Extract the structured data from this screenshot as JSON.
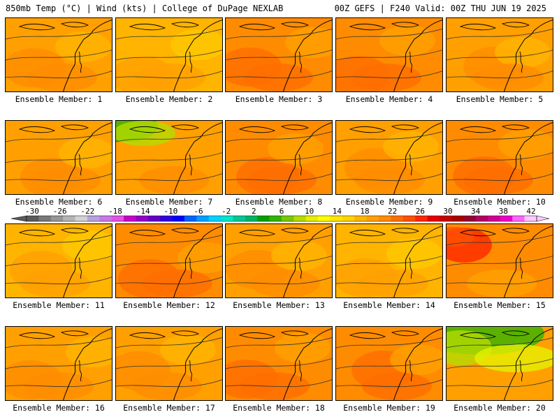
{
  "header": {
    "title_left": "850mb Temp (°C) | Wind (kts) | College of DuPage NEXLAB",
    "title_right": "00Z GEFS | F240 Valid: 00Z THU JUN 19 2025"
  },
  "members": [
    {
      "label": "Ensemble Member: 1",
      "theme": "warm"
    },
    {
      "label": "Ensemble Member: 2",
      "theme": "mild"
    },
    {
      "label": "Ensemble Member: 3",
      "theme": "hot"
    },
    {
      "label": "Ensemble Member: 4",
      "theme": "hot"
    },
    {
      "label": "Ensemble Member: 5",
      "theme": "warm"
    },
    {
      "label": "Ensemble Member: 6",
      "theme": "warm"
    },
    {
      "label": "Ensemble Member: 7",
      "theme": "cool_nw"
    },
    {
      "label": "Ensemble Member: 8",
      "theme": "hot"
    },
    {
      "label": "Ensemble Member: 9",
      "theme": "warm"
    },
    {
      "label": "Ensemble Member: 10",
      "theme": "hot"
    },
    {
      "label": "Ensemble Member: 11",
      "theme": "mild"
    },
    {
      "label": "Ensemble Member: 12",
      "theme": "hot"
    },
    {
      "label": "Ensemble Member: 13",
      "theme": "warm"
    },
    {
      "label": "Ensemble Member: 14",
      "theme": "mild"
    },
    {
      "label": "Ensemble Member: 15",
      "theme": "veryhot"
    },
    {
      "label": "Ensemble Member: 16",
      "theme": "warm"
    },
    {
      "label": "Ensemble Member: 17",
      "theme": "warm"
    },
    {
      "label": "Ensemble Member: 18",
      "theme": "hot"
    },
    {
      "label": "Ensemble Member: 19",
      "theme": "hot"
    },
    {
      "label": "Ensemble Member: 20",
      "theme": "cool_n"
    }
  ],
  "colorbar": {
    "tick_labels": [
      "-30",
      "-26",
      "-22",
      "-18",
      "-14",
      "-10",
      "-6",
      "-2",
      "2",
      "6",
      "10",
      "14",
      "18",
      "22",
      "26",
      "30",
      "34",
      "38",
      "42"
    ],
    "colors": [
      "#5a5a5a",
      "#787878",
      "#969696",
      "#b4b4b4",
      "#d2d2d2",
      "#b9a0dc",
      "#c878e6",
      "#e650e6",
      "#c800c8",
      "#9600c8",
      "#6400c8",
      "#3200dc",
      "#0000ff",
      "#0064ff",
      "#00a0ff",
      "#00d2ff",
      "#00e6c8",
      "#00c896",
      "#00b464",
      "#00a000",
      "#32b400",
      "#78c800",
      "#b4dc00",
      "#e6f000",
      "#ffff00",
      "#ffe600",
      "#ffd200",
      "#ffb400",
      "#ffa000",
      "#ff8c00",
      "#ff6e00",
      "#ff5000",
      "#ff2800",
      "#e60000",
      "#c80000",
      "#aa0000",
      "#960032",
      "#b40064",
      "#d20096",
      "#f000c8",
      "#ff64ff",
      "#ffc8ff"
    ]
  },
  "theme_colors": {
    "mild": {
      "base": "#ffb400",
      "blobs": [
        "#ffa000",
        "#ffc800",
        "#ffa000"
      ]
    },
    "warm": {
      "base": "#ffa000",
      "blobs": [
        "#ff8c00",
        "#ffb400",
        "#ff8c00"
      ]
    },
    "hot": {
      "base": "#ff8c00",
      "blobs": [
        "#ff6e00",
        "#ffa000",
        "#ff6e00"
      ]
    },
    "veryhot": {
      "base": "#ff8c00",
      "blobs": [
        "#ff2800",
        "#ff5000",
        "#ffa000"
      ]
    },
    "cool_nw": {
      "base": "#ffa000",
      "blobs": [
        "#32b400",
        "#b4dc00",
        "#ff8c00"
      ]
    },
    "cool_n": {
      "base": "#ffa000",
      "blobs": [
        "#32b400",
        "#b4dc00",
        "#e6f000"
      ]
    }
  }
}
